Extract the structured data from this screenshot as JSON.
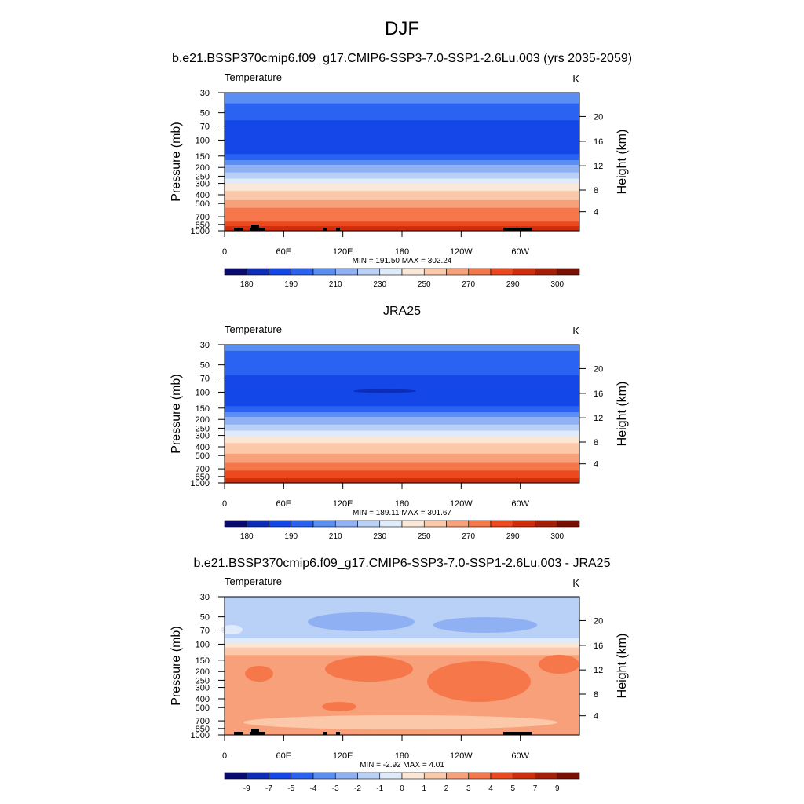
{
  "figure": {
    "title": "DJF"
  },
  "chart_data": [
    {
      "type": "heatmap",
      "title": "b.e21.BSSP370cmip6.f09_g17.CMIP6-SSP3-7.0-SSP1-2.6Lu.003 (yrs 2035-2059)",
      "variable": "Temperature",
      "units": "K",
      "ylabel": "Pressure (mb)",
      "ylabel_right": "Height (km)",
      "yticks": [
        "30",
        "50",
        "70",
        "100",
        "150",
        "200",
        "250",
        "300",
        "400",
        "500",
        "700",
        "850",
        "1000"
      ],
      "yticks_right": [
        "20",
        "16",
        "12",
        "8",
        "4"
      ],
      "xticks": [
        "0",
        "60E",
        "120E",
        "180",
        "120W",
        "60W"
      ],
      "stats": "MIN = 191.50  MAX = 302.24",
      "min": 191.5,
      "max": 302.24,
      "colorbar_labels": [
        "180",
        "190",
        "210",
        "230",
        "250",
        "270",
        "290",
        "300"
      ],
      "colors": [
        "#0a0a73",
        "#0d2cb8",
        "#1447e8",
        "#2a62f2",
        "#5b8ef2",
        "#8fb0f2",
        "#b9d0f7",
        "#dfeafa",
        "#fbe7d6",
        "#fbc9aa",
        "#f8a07a",
        "#f5774a",
        "#ec4a1e",
        "#cf2d0c",
        "#a51e08",
        "#7a1004"
      ],
      "level_colors_by_pressure": [
        {
          "p": 30,
          "color": "#5b8ef2"
        },
        {
          "p": 40,
          "color": "#2a62f2"
        },
        {
          "p": 60,
          "color": "#1447e8"
        },
        {
          "p": 120,
          "color": "#1447e8"
        },
        {
          "p": 145,
          "color": "#2a62f2"
        },
        {
          "p": 165,
          "color": "#5b8ef2"
        },
        {
          "p": 190,
          "color": "#8fb0f2"
        },
        {
          "p": 225,
          "color": "#b9d0f7"
        },
        {
          "p": 265,
          "color": "#dfeafa"
        },
        {
          "p": 300,
          "color": "#fbe7d6"
        },
        {
          "p": 360,
          "color": "#fbc9aa"
        },
        {
          "p": 450,
          "color": "#f8a07a"
        },
        {
          "p": 560,
          "color": "#f5774a"
        },
        {
          "p": 700,
          "color": "#f5774a"
        },
        {
          "p": 780,
          "color": "#ec4a1e"
        },
        {
          "p": 900,
          "color": "#cf2d0c"
        },
        {
          "p": 1000,
          "color": "#cf2d0c"
        }
      ]
    },
    {
      "type": "heatmap",
      "title": "JRA25",
      "variable": "Temperature",
      "units": "K",
      "ylabel": "Pressure (mb)",
      "ylabel_right": "Height (km)",
      "yticks": [
        "30",
        "50",
        "70",
        "100",
        "150",
        "200",
        "250",
        "300",
        "400",
        "500",
        "700",
        "850",
        "1000"
      ],
      "yticks_right": [
        "20",
        "16",
        "12",
        "8",
        "4"
      ],
      "xticks": [
        "0",
        "60E",
        "120E",
        "180",
        "120W",
        "60W"
      ],
      "stats": "MIN = 189.11  MAX = 301.67",
      "min": 189.11,
      "max": 301.67,
      "colorbar_labels": [
        "180",
        "190",
        "210",
        "230",
        "250",
        "270",
        "290",
        "300"
      ],
      "colors": [
        "#0a0a73",
        "#0d2cb8",
        "#1447e8",
        "#2a62f2",
        "#5b8ef2",
        "#8fb0f2",
        "#b9d0f7",
        "#dfeafa",
        "#fbe7d6",
        "#fbc9aa",
        "#f8a07a",
        "#f5774a",
        "#ec4a1e",
        "#cf2d0c",
        "#a51e08",
        "#7a1004"
      ],
      "level_colors_by_pressure": [
        {
          "p": 30,
          "color": "#5b8ef2"
        },
        {
          "p": 35,
          "color": "#2a62f2"
        },
        {
          "p": 65,
          "color": "#1447e8"
        },
        {
          "p": 120,
          "color": "#1447e8"
        },
        {
          "p": 140,
          "color": "#2a62f2"
        },
        {
          "p": 165,
          "color": "#5b8ef2"
        },
        {
          "p": 190,
          "color": "#8fb0f2"
        },
        {
          "p": 225,
          "color": "#b9d0f7"
        },
        {
          "p": 265,
          "color": "#dfeafa"
        },
        {
          "p": 310,
          "color": "#fbe7d6"
        },
        {
          "p": 370,
          "color": "#fbc9aa"
        },
        {
          "p": 470,
          "color": "#f8a07a"
        },
        {
          "p": 600,
          "color": "#f5774a"
        },
        {
          "p": 730,
          "color": "#ec4a1e"
        },
        {
          "p": 880,
          "color": "#cf2d0c"
        },
        {
          "p": 1000,
          "color": "#cf2d0c"
        }
      ]
    },
    {
      "type": "heatmap",
      "title": "b.e21.BSSP370cmip6.f09_g17.CMIP6-SSP3-7.0-SSP1-2.6Lu.003 - JRA25",
      "variable": "Temperature",
      "units": "K",
      "ylabel": "Pressure (mb)",
      "ylabel_right": "Height (km)",
      "yticks": [
        "30",
        "50",
        "70",
        "100",
        "150",
        "200",
        "250",
        "300",
        "400",
        "500",
        "700",
        "850",
        "1000"
      ],
      "yticks_right": [
        "20",
        "16",
        "12",
        "8",
        "4"
      ],
      "xticks": [
        "0",
        "60E",
        "120E",
        "180",
        "120W",
        "60W"
      ],
      "stats": "MIN =  -2.92  MAX =   4.01",
      "min": -2.92,
      "max": 4.01,
      "colorbar_labels": [
        "-9",
        "-7",
        "-5",
        "-4",
        "-3",
        "-2",
        "-1",
        "0",
        "1",
        "2",
        "3",
        "4",
        "5",
        "7",
        "9"
      ],
      "colors": [
        "#0a0a73",
        "#0d2cb8",
        "#1447e8",
        "#2a62f2",
        "#5b8ef2",
        "#8fb0f2",
        "#b9d0f7",
        "#dfeafa",
        "#fbe7d6",
        "#fbc9aa",
        "#f8a07a",
        "#f5774a",
        "#ec4a1e",
        "#cf2d0c",
        "#a51e08",
        "#7a1004"
      ],
      "level_colors_by_pressure": [
        {
          "p": 30,
          "color": "#b9d0f7"
        },
        {
          "p": 85,
          "color": "#dfeafa"
        },
        {
          "p": 95,
          "color": "#fbe7d6"
        },
        {
          "p": 110,
          "color": "#fbc9aa"
        },
        {
          "p": 130,
          "color": "#f8a07a"
        },
        {
          "p": 1000,
          "color": "#f8a07a"
        }
      ]
    }
  ]
}
